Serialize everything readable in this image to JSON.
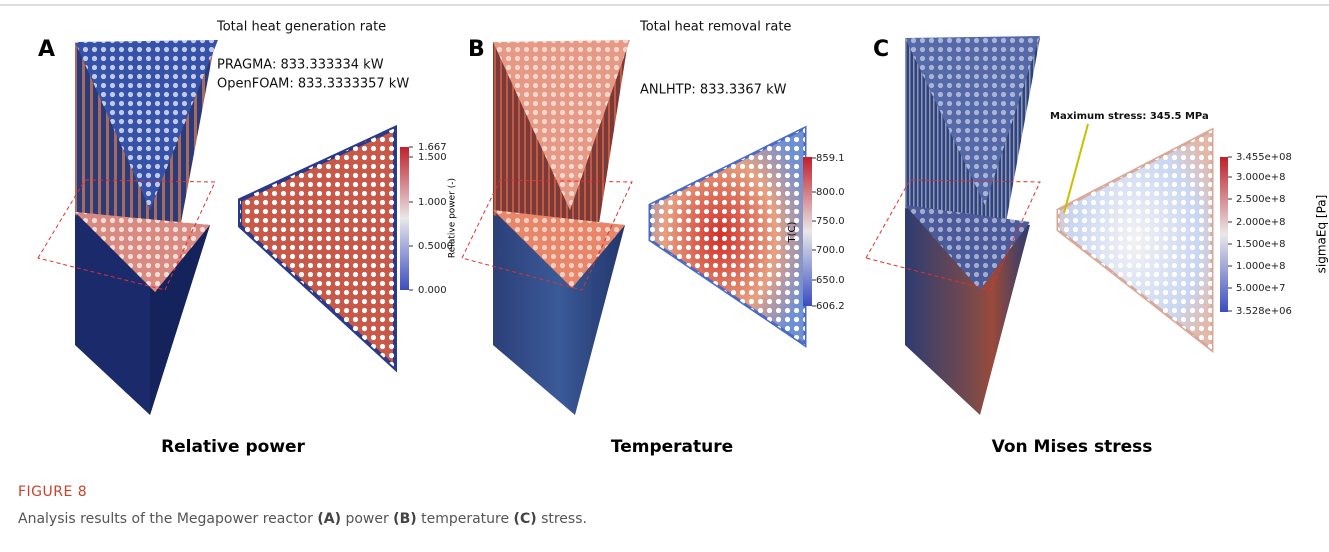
{
  "panels": [
    {
      "letter": "A",
      "annotations": [
        "Total heat generation rate",
        "PRAGMA: 833.333334 kW",
        "OpenFOAM: 833.3333357 kW"
      ],
      "colorbar": {
        "title": "Relative power (-)",
        "ticks": [
          "1.667",
          "1.500",
          "1.000",
          "0.5000",
          "0.000"
        ]
      },
      "caption": "Relative power"
    },
    {
      "letter": "B",
      "annotations": [
        "Total heat removal rate",
        "ANLHTP: 833.3367 kW"
      ],
      "colorbar": {
        "title": "T(C)",
        "ticks": [
          "859.1",
          "800.0",
          "750.0",
          "700.0",
          "650.0",
          "606.2"
        ]
      },
      "caption": "Temperature"
    },
    {
      "letter": "C",
      "annotations": [
        "Maximum stress: 345.5 MPa"
      ],
      "colorbar": {
        "title": "sigmaEq [Pa]",
        "ticks": [
          "3.455e+08",
          "3.000e+8",
          "2.500e+8",
          "2.000e+8",
          "1.500e+8",
          "1.000e+8",
          "5.000e+7",
          "3.528e+06"
        ]
      },
      "caption": "Von Mises stress"
    }
  ],
  "figure": {
    "label": "FIGURE 8",
    "caption": {
      "text": "Analysis results of the Megapower reactor",
      "items": [
        {
          "label": "(A)",
          "text": "power"
        },
        {
          "label": "(B)",
          "text": "temperature"
        },
        {
          "label": "(C)",
          "text": "stress."
        }
      ]
    }
  }
}
